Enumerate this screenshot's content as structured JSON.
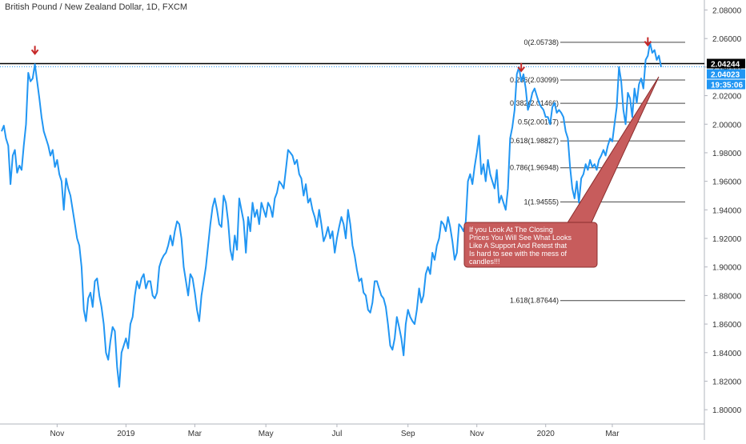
{
  "chart_data": {
    "type": "line",
    "title": "British Pound / New Zealand Dollar, 1D, FXCM",
    "xlabel": "",
    "ylabel": "",
    "ylim": [
      1.79,
      2.087
    ],
    "grid": false,
    "x_ticks": [
      "Nov",
      "2019",
      "Mar",
      "May",
      "Jul",
      "Sep",
      "Nov",
      "2020",
      "Mar"
    ],
    "y_ticks": [
      "2.08000",
      "2.06000",
      "2.04000",
      "2.02000",
      "2.00000",
      "1.98000",
      "1.96000",
      "1.94000",
      "1.92000",
      "1.90000",
      "1.88000",
      "1.86000",
      "1.84000",
      "1.82000",
      "1.80000"
    ],
    "series": [
      {
        "color": "#2196f3",
        "values": [
          1.995,
          1.999,
          1.99,
          1.985,
          1.958,
          1.978,
          1.982,
          1.966,
          1.971,
          1.968,
          1.985,
          2.0,
          2.036,
          2.03,
          2.032,
          2.042,
          2.03,
          2.018,
          2.005,
          1.995,
          1.99,
          1.985,
          1.978,
          1.982,
          1.97,
          1.975,
          1.965,
          1.96,
          1.94,
          1.962,
          1.955,
          1.95,
          1.94,
          1.93,
          1.92,
          1.915,
          1.9,
          1.87,
          1.862,
          1.878,
          1.882,
          1.872,
          1.89,
          1.892,
          1.88,
          1.872,
          1.86,
          1.84,
          1.835,
          1.848,
          1.858,
          1.855,
          1.83,
          1.816,
          1.84,
          1.845,
          1.85,
          1.843,
          1.86,
          1.865,
          1.88,
          1.89,
          1.885,
          1.892,
          1.895,
          1.885,
          1.89,
          1.89,
          1.88,
          1.878,
          1.882,
          1.9,
          1.905,
          1.908,
          1.91,
          1.915,
          1.922,
          1.915,
          1.925,
          1.932,
          1.93,
          1.92,
          1.9,
          1.89,
          1.88,
          1.895,
          1.892,
          1.882,
          1.87,
          1.862,
          1.88,
          1.89,
          1.9,
          1.915,
          1.93,
          1.942,
          1.948,
          1.94,
          1.93,
          1.928,
          1.95,
          1.945,
          1.932,
          1.912,
          1.905,
          1.922,
          1.912,
          1.948,
          1.94,
          1.932,
          1.91,
          1.935,
          1.925,
          1.945,
          1.935,
          1.94,
          1.93,
          1.945,
          1.94,
          1.935,
          1.945,
          1.942,
          1.935,
          1.948,
          1.952,
          1.96,
          1.958,
          1.955,
          1.968,
          1.982,
          1.98,
          1.978,
          1.972,
          1.975,
          1.965,
          1.962,
          1.95,
          1.958,
          1.945,
          1.948,
          1.94,
          1.935,
          1.928,
          1.94,
          1.93,
          1.918,
          1.922,
          1.928,
          1.92,
          1.925,
          1.91,
          1.92,
          1.928,
          1.935,
          1.93,
          1.92,
          1.94,
          1.93,
          1.915,
          1.908,
          1.898,
          1.89,
          1.892,
          1.882,
          1.88,
          1.87,
          1.868,
          1.875,
          1.89,
          1.89,
          1.885,
          1.88,
          1.878,
          1.872,
          1.86,
          1.845,
          1.842,
          1.85,
          1.865,
          1.858,
          1.85,
          1.838,
          1.86,
          1.87,
          1.865,
          1.862,
          1.86,
          1.87,
          1.885,
          1.875,
          1.88,
          1.895,
          1.9,
          1.895,
          1.91,
          1.905,
          1.915,
          1.92,
          1.932,
          1.93,
          1.925,
          1.935,
          1.928,
          1.918,
          1.905,
          1.91,
          1.93,
          1.928,
          1.925,
          1.932,
          1.96,
          1.965,
          1.958,
          1.97,
          1.98,
          1.992,
          1.965,
          1.972,
          1.96,
          1.975,
          1.965,
          1.96,
          1.955,
          1.968,
          1.945,
          1.95,
          1.945,
          1.94,
          1.955,
          1.99,
          1.998,
          2.01,
          2.035,
          2.04,
          2.03,
          2.035,
          2.025,
          2.01,
          2.015,
          2.022,
          2.025,
          2.02,
          2.015,
          2.012,
          2.01,
          2.005,
          2.005,
          2.0,
          2.012,
          2.015,
          2.008,
          2.01,
          2.008,
          2.005,
          1.995,
          1.99,
          1.97,
          1.955,
          1.948,
          1.96,
          1.945,
          1.962,
          1.965,
          1.972,
          1.968,
          1.975,
          1.97,
          1.972,
          1.968,
          1.975,
          1.978,
          1.982,
          1.978,
          1.985,
          1.99,
          1.988,
          2.0,
          2.012,
          2.04,
          2.03,
          2.01,
          2.0,
          2.022,
          2.018,
          2.005,
          2.025,
          2.015,
          2.028,
          2.032,
          2.025,
          2.045,
          2.048,
          2.057,
          2.05,
          2.052,
          2.045,
          2.048,
          2.04
        ]
      }
    ],
    "hlines": [
      {
        "label": "2.04244",
        "value": 2.04244,
        "color": "#000000",
        "style": "solid"
      },
      {
        "label": "2.04023",
        "value": 2.04023,
        "color": "#2196f3",
        "style": "dotted"
      }
    ],
    "price_tags": [
      {
        "text": "2.04244",
        "value": 2.04244,
        "bg": "#000000",
        "fg": "#ffffff"
      },
      {
        "text": "2.04023",
        "value": 2.04023,
        "bg": "#2196f3",
        "fg": "#ffffff"
      },
      {
        "text": "19:35:06",
        "value": 2.0315,
        "bg": "#2196f3",
        "fg": "#ffffff"
      }
    ],
    "fib_levels": [
      {
        "label": "0(2.05738)",
        "value": 2.05738
      },
      {
        "label": "0.236(2.03099)",
        "value": 2.03099
      },
      {
        "label": "0.382(2.01466)",
        "value": 2.01466
      },
      {
        "label": "0.5(2.00147)",
        "value": 2.00147
      },
      {
        "label": "0.618(1.98827)",
        "value": 1.98827
      },
      {
        "label": "0.786(1.96948)",
        "value": 1.96948
      },
      {
        "label": "1(1.94555)",
        "value": 1.94555
      },
      {
        "label": "1.618(1.87644)",
        "value": 1.87644
      }
    ],
    "arrows": [
      {
        "name": "arrow-1",
        "index": 15
      },
      {
        "name": "arrow-2",
        "index": 234
      },
      {
        "name": "arrow-3",
        "index": 291
      }
    ],
    "annotation": {
      "text": "If you Look At The Closing Prices You Will See What Looks Like A Support And Retest that Is hard to see with the mess of candles!!!",
      "bg": "#c75c5c",
      "border": "#8b2e2e",
      "fg": "#ffffff"
    },
    "colors": {
      "line": "#2196f3",
      "axis_text": "#333333",
      "arrow": "#c62828"
    }
  }
}
